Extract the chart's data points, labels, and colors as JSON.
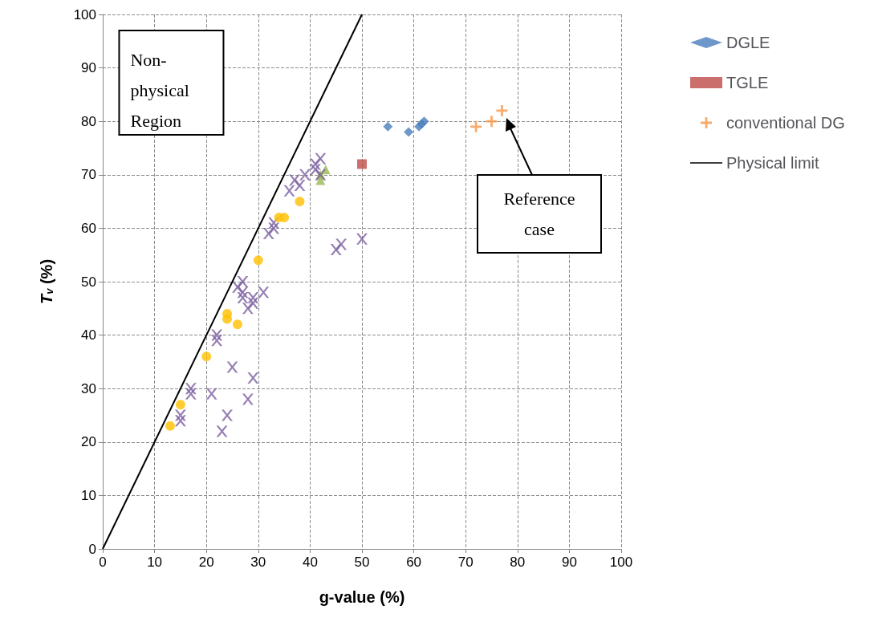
{
  "chart_data": {
    "type": "scatter",
    "xlabel": "g-value (%)",
    "ylabel": "T$_{v}$ (%)",
    "xlim": [
      0,
      100
    ],
    "ylim": [
      0,
      100
    ],
    "xticks": [
      0,
      10,
      20,
      30,
      40,
      50,
      60,
      70,
      80,
      90,
      100
    ],
    "yticks": [
      0,
      10,
      20,
      30,
      40,
      50,
      60,
      70,
      80,
      90,
      100
    ],
    "grid": true,
    "legend": "right",
    "series": [
      {
        "name": "DGLE",
        "color": "#4a7ebb",
        "marker": "diamond",
        "x": [
          55,
          59,
          61,
          61.5,
          62
        ],
        "values": [
          79,
          78,
          79,
          79.5,
          80
        ]
      },
      {
        "name": "TGLE",
        "color": "#be4b48",
        "marker": "square",
        "x": [
          50
        ],
        "values": [
          72
        ]
      },
      {
        "color": "#98b954",
        "marker": "triangle",
        "x": [
          42,
          42,
          43
        ],
        "values": [
          69,
          70,
          71
        ]
      },
      {
        "color": "#7d60a0",
        "marker": "cross",
        "x": [
          15,
          15,
          17,
          17,
          21,
          22,
          22,
          23,
          24,
          25,
          26,
          27,
          27,
          27,
          28,
          28,
          29,
          29,
          29,
          31,
          32,
          33,
          33,
          36,
          37,
          38,
          39,
          41,
          41,
          42,
          42,
          45,
          46,
          50
        ],
        "values": [
          24,
          25,
          29,
          30,
          29,
          39,
          40,
          22,
          25,
          34,
          49,
          47,
          48,
          50,
          28,
          45,
          46,
          47,
          32,
          48,
          59,
          60,
          61,
          67,
          69,
          68,
          70,
          71,
          72,
          70,
          73,
          56,
          57,
          58
        ]
      },
      {
        "color": "#ffc000",
        "marker": "circle",
        "x": [
          13,
          15,
          20,
          24,
          24,
          26,
          30,
          34,
          35,
          38
        ],
        "values": [
          23,
          27,
          36,
          43,
          44,
          42,
          54,
          62,
          62,
          65
        ]
      },
      {
        "name": "conventional DG",
        "color": "#f79646",
        "marker": "plus",
        "x": [
          72,
          75,
          77
        ],
        "values": [
          79,
          80,
          82
        ]
      },
      {
        "name": "Physical limit",
        "type": "line",
        "color": "#000000",
        "marker": "none",
        "x": [
          0,
          50
        ],
        "values": [
          0,
          100
        ]
      }
    ],
    "annotations": [
      "Non-physical Region",
      "Reference case"
    ]
  }
}
